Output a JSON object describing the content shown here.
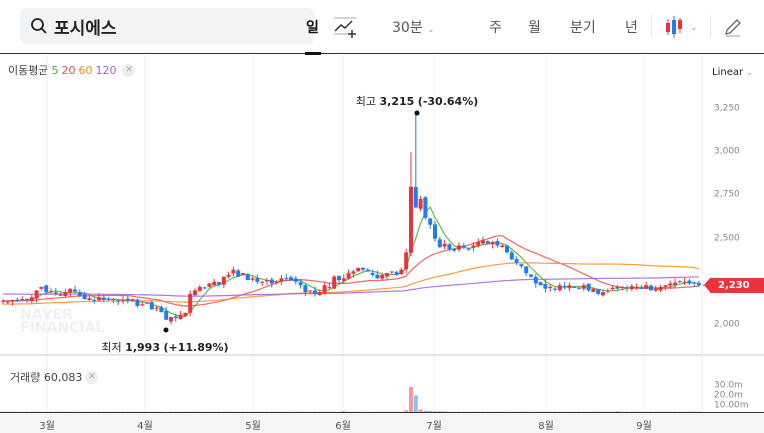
{
  "header": {
    "stock_name": "포시에스",
    "interval": "30분",
    "tabs": [
      "일",
      "주",
      "월",
      "분기",
      "년"
    ],
    "active_tab": "일"
  },
  "indicators": {
    "ma_label": "이동평균",
    "ma_periods": [
      "5",
      "20",
      "60",
      "120"
    ],
    "ma_colors": [
      "#4caf2a",
      "#f04b4b",
      "#ff8a1e",
      "#a55ed6"
    ],
    "scale": "Linear"
  },
  "volume": {
    "label": "거래량",
    "value": "60,083",
    "ticks": [
      "30.0m",
      "20.0m",
      "10.00m"
    ]
  },
  "watermark": "NAVER FINANCIAL",
  "chart_data": {
    "type": "candlestick",
    "x_tick_labels": [
      "3월",
      "4월",
      "5월",
      "6월",
      "7월",
      "8월",
      "9월"
    ],
    "y_ticks": [
      3250,
      3000,
      2750,
      2500,
      2250,
      2000
    ],
    "y_tick_labels": [
      "3,250",
      "3,000",
      "2,750",
      "2,500",
      "2,250",
      "2,000"
    ],
    "ylim": [
      1850,
      3450
    ],
    "current_price": "2,230",
    "high": {
      "label": "최고",
      "value": "3,215",
      "change": "(-30.64%)"
    },
    "low": {
      "label": "최저",
      "value": "1,993",
      "change": "(+11.89%)"
    },
    "colors": {
      "up": "#e9343b",
      "down": "#1e7df0"
    },
    "closes": [
      2140,
      2135,
      2145,
      2140,
      2150,
      2145,
      2160,
      2200,
      2220,
      2190,
      2195,
      2180,
      2175,
      2190,
      2210,
      2195,
      2170,
      2150,
      2155,
      2140,
      2160,
      2145,
      2150,
      2150,
      2135,
      2145,
      2140,
      2150,
      2110,
      2120,
      2130,
      2090,
      2100,
      2075,
      2030,
      2045,
      2040,
      2060,
      2070,
      2180,
      2200,
      2220,
      2215,
      2240,
      2250,
      2235,
      2280,
      2290,
      2320,
      2280,
      2300,
      2260,
      2270,
      2250,
      2250,
      2260,
      2240,
      2250,
      2270,
      2270,
      2260,
      2250,
      2230,
      2190,
      2200,
      2180,
      2190,
      2230,
      2220,
      2280,
      2260,
      2270,
      2300,
      2310,
      2330,
      2320,
      2310,
      2290,
      2270,
      2290,
      2300,
      2310,
      2290,
      2320,
      2420,
      2800,
      2680,
      2730,
      2620,
      2580,
      2500,
      2450,
      2470,
      2440,
      2430,
      2460,
      2450,
      2440,
      2460,
      2480,
      2490,
      2470,
      2480,
      2460,
      2460,
      2420,
      2380,
      2360,
      2340,
      2300,
      2280,
      2240,
      2230,
      2210,
      2220,
      2210,
      2230,
      2220,
      2230,
      2220,
      2210,
      2230,
      2200,
      2210,
      2180,
      2190,
      2200,
      2215,
      2210,
      2220,
      2215,
      2225,
      2220,
      2210,
      2230,
      2200,
      2210,
      2220,
      2230,
      2240,
      2245,
      2250,
      2250,
      2240,
      2240,
      2230
    ],
    "spike_high": {
      "index": 86,
      "value": 3215
    },
    "volumes_m": {
      "default": 0.4,
      "spikes": {
        "84": 2,
        "85": 30,
        "86": 20,
        "87": 3,
        "88": 1.5,
        "89": 1.2,
        "90": 1,
        "91": 1,
        "92": 1,
        "71": 1,
        "34": 0.2,
        "128": 1
      }
    }
  }
}
